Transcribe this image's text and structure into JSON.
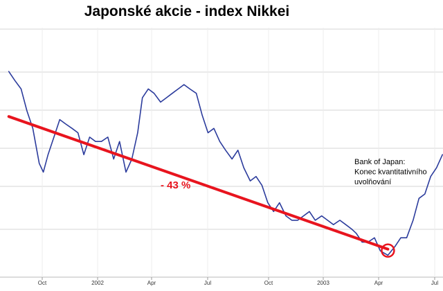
{
  "chart_data": {
    "type": "line",
    "title": "Japonské akcie - index Nikkei",
    "xlabel": "",
    "ylabel": "",
    "x_tick_labels": [
      "Oct",
      "2002",
      "Apr",
      "Jul",
      "Oct",
      "2003",
      "Apr",
      "Jul"
    ],
    "grid": true,
    "legend": "none",
    "y_axis_labels_visible": false,
    "series": [
      {
        "color": "#2b3b9c",
        "x": [
          "2001-07-20",
          "2001-07-30",
          "2001-08-10",
          "2001-08-20",
          "2001-08-30",
          "2001-09-10",
          "2001-09-17",
          "2001-09-25",
          "2001-10-05",
          "2001-10-15",
          "2001-10-25",
          "2001-11-05",
          "2001-11-15",
          "2001-11-25",
          "2001-12-05",
          "2001-12-15",
          "2001-12-25",
          "2002-01-05",
          "2002-01-15",
          "2002-01-25",
          "2002-02-05",
          "2002-02-15",
          "2002-02-25",
          "2002-03-05",
          "2002-03-15",
          "2002-03-25",
          "2002-04-05",
          "2002-04-15",
          "2002-04-25",
          "2002-05-05",
          "2002-05-15",
          "2002-05-25",
          "2002-06-05",
          "2002-06-15",
          "2002-06-25",
          "2002-07-05",
          "2002-07-15",
          "2002-07-25",
          "2002-08-05",
          "2002-08-15",
          "2002-08-25",
          "2002-09-05",
          "2002-09-15",
          "2002-09-25",
          "2002-10-05",
          "2002-10-15",
          "2002-10-25",
          "2002-11-05",
          "2002-11-15",
          "2002-11-25",
          "2002-12-05",
          "2002-12-15",
          "2002-12-25",
          "2003-01-05",
          "2003-01-15",
          "2003-01-25",
          "2003-02-05",
          "2003-02-15",
          "2003-02-25",
          "2003-03-05",
          "2003-03-15",
          "2003-03-25",
          "2003-04-05",
          "2003-04-15",
          "2003-04-28",
          "2003-05-10",
          "2003-05-20",
          "2003-05-30",
          "2003-06-10",
          "2003-06-20",
          "2003-06-30",
          "2003-07-10",
          "2003-07-20",
          "2003-07-30"
        ],
        "y": [
          11900,
          11700,
          11500,
          11000,
          10600,
          9800,
          9600,
          10000,
          10400,
          10800,
          10700,
          10600,
          10500,
          10000,
          10400,
          10300,
          10300,
          10400,
          9900,
          10300,
          9600,
          9900,
          10500,
          11300,
          11500,
          11400,
          11200,
          11300,
          11400,
          11500,
          11600,
          11500,
          11400,
          10900,
          10500,
          10600,
          10300,
          10100,
          9900,
          10100,
          9700,
          9400,
          9500,
          9300,
          8900,
          8700,
          8900,
          8600,
          8500,
          8500,
          8600,
          8700,
          8500,
          8600,
          8500,
          8400,
          8500,
          8400,
          8300,
          8200,
          8000,
          8000,
          8100,
          7800,
          7700,
          7900,
          8100,
          8100,
          8500,
          9000,
          9100,
          9500,
          9700,
          10000
        ]
      },
      {
        "color": "#e8141e",
        "x": [
          "2001-07-20",
          "2003-04-28"
        ],
        "y": [
          10870,
          7840
        ]
      }
    ],
    "annotations": [
      {
        "text": "- 43 %",
        "color": "#e8141e"
      },
      {
        "lines": [
          "Bank of Japan:",
          "Konec kvantitativního",
          "uvolňování"
        ]
      }
    ]
  }
}
